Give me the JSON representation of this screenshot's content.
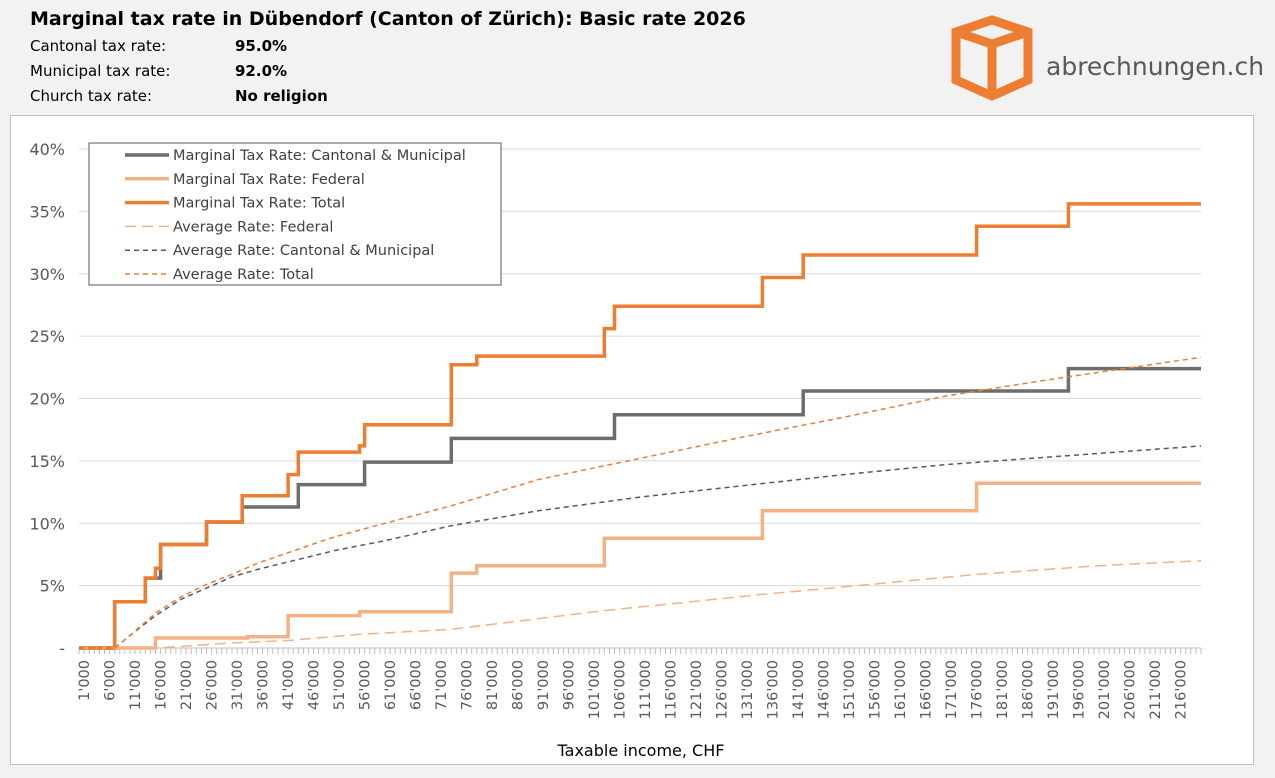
{
  "header": {
    "title": "Marginal tax rate in Dübendorf (Canton of Zürich): Basic rate 2026",
    "rows": [
      {
        "label": "Cantonal tax rate:",
        "value": "95.0%"
      },
      {
        "label": "Municipal tax rate:",
        "value": "92.0%"
      },
      {
        "label": "Church tax rate:",
        "value": "No religion"
      }
    ]
  },
  "brand": {
    "name": "abrechnungen.ch",
    "icon": "box-icon",
    "color": "#ed7d31"
  },
  "chart_data": {
    "type": "line",
    "xlabel": "Taxable income, CHF",
    "x_ticks": [
      "1'000",
      "6'000",
      "11'000",
      "16'000",
      "21'000",
      "26'000",
      "31'000",
      "36'000",
      "41'000",
      "46'000",
      "51'000",
      "56'000",
      "61'000",
      "66'000",
      "71'000",
      "76'000",
      "81'000",
      "86'000",
      "91'000",
      "96'000",
      "101'000",
      "106'000",
      "111'000",
      "116'000",
      "121'000",
      "126'000",
      "131'000",
      "136'000",
      "141'000",
      "146'000",
      "151'000",
      "156'000",
      "161'000",
      "166'000",
      "171'000",
      "176'000",
      "181'000",
      "186'000",
      "191'000",
      "196'000",
      "201'000",
      "206'000",
      "211'000",
      "216'000"
    ],
    "y_ticks": [
      "-",
      "5%",
      "10%",
      "15%",
      "20%",
      "25%",
      "30%",
      "35%",
      "40%"
    ],
    "xlim": [
      0,
      220000
    ],
    "ylim": [
      0,
      40
    ],
    "grid": true,
    "legend_position": "top-left",
    "series": [
      {
        "name": "Marginal Tax Rate: Cantonal & Municipal",
        "color": "#6d6d6d",
        "style": "solid",
        "width": 3.5,
        "points": [
          [
            0,
            0
          ],
          [
            7000,
            0
          ],
          [
            7000,
            3.7
          ],
          [
            13000,
            3.7
          ],
          [
            13000,
            5.6
          ],
          [
            16000,
            5.6
          ],
          [
            16000,
            8.3
          ],
          [
            25000,
            8.3
          ],
          [
            25000,
            10.1
          ],
          [
            32000,
            10.1
          ],
          [
            32000,
            11.3
          ],
          [
            43000,
            11.3
          ],
          [
            43000,
            13.1
          ],
          [
            56000,
            13.1
          ],
          [
            56000,
            14.9
          ],
          [
            73000,
            14.9
          ],
          [
            73000,
            16.8
          ],
          [
            105000,
            16.8
          ],
          [
            105000,
            18.7
          ],
          [
            142000,
            18.7
          ],
          [
            142000,
            20.6
          ],
          [
            194000,
            20.6
          ],
          [
            194000,
            22.4
          ],
          [
            220000,
            22.4
          ]
        ]
      },
      {
        "name": "Marginal Tax Rate: Federal",
        "color": "#f4b183",
        "style": "solid",
        "width": 3.5,
        "points": [
          [
            0,
            0
          ],
          [
            15000,
            0
          ],
          [
            15000,
            0.8
          ],
          [
            33000,
            0.8
          ],
          [
            33000,
            0.9
          ],
          [
            41000,
            0.9
          ],
          [
            41000,
            2.6
          ],
          [
            55000,
            2.6
          ],
          [
            55000,
            2.9
          ],
          [
            73000,
            2.9
          ],
          [
            73000,
            6.0
          ],
          [
            78000,
            6.0
          ],
          [
            78000,
            6.6
          ],
          [
            103000,
            6.6
          ],
          [
            103000,
            8.8
          ],
          [
            134000,
            8.8
          ],
          [
            134000,
            11.0
          ],
          [
            176000,
            11.0
          ],
          [
            176000,
            13.2
          ],
          [
            220000,
            13.2
          ]
        ]
      },
      {
        "name": "Marginal Tax Rate: Total",
        "color": "#ed7d31",
        "style": "solid",
        "width": 3.5,
        "points": [
          [
            0,
            0
          ],
          [
            7000,
            0
          ],
          [
            7000,
            3.7
          ],
          [
            13000,
            3.7
          ],
          [
            13000,
            5.6
          ],
          [
            15000,
            5.6
          ],
          [
            15000,
            6.4
          ],
          [
            16000,
            6.4
          ],
          [
            16000,
            8.3
          ],
          [
            25000,
            8.3
          ],
          [
            25000,
            10.1
          ],
          [
            32000,
            10.1
          ],
          [
            32000,
            12.2
          ],
          [
            41000,
            12.2
          ],
          [
            41000,
            13.9
          ],
          [
            43000,
            13.9
          ],
          [
            43000,
            15.7
          ],
          [
            55000,
            15.7
          ],
          [
            55000,
            16.2
          ],
          [
            56000,
            16.2
          ],
          [
            56000,
            17.9
          ],
          [
            73000,
            17.9
          ],
          [
            73000,
            22.7
          ],
          [
            78000,
            22.7
          ],
          [
            78000,
            23.4
          ],
          [
            103000,
            23.4
          ],
          [
            103000,
            25.6
          ],
          [
            105000,
            25.6
          ],
          [
            105000,
            27.4
          ],
          [
            134000,
            27.4
          ],
          [
            134000,
            29.7
          ],
          [
            142000,
            29.7
          ],
          [
            142000,
            31.5
          ],
          [
            176000,
            31.5
          ],
          [
            176000,
            33.8
          ],
          [
            194000,
            33.8
          ],
          [
            194000,
            35.6
          ],
          [
            220000,
            35.6
          ]
        ]
      },
      {
        "name": "Average Rate: Federal",
        "color": "#f4b183",
        "style": "dashed-long",
        "width": 1.5,
        "points": [
          [
            0,
            0
          ],
          [
            15000,
            0
          ],
          [
            30000,
            0.4
          ],
          [
            41000,
            0.6
          ],
          [
            55000,
            1.1
          ],
          [
            73000,
            1.5
          ],
          [
            85000,
            2.1
          ],
          [
            103000,
            3.0
          ],
          [
            120000,
            3.7
          ],
          [
            134000,
            4.3
          ],
          [
            150000,
            4.9
          ],
          [
            176000,
            5.9
          ],
          [
            200000,
            6.6
          ],
          [
            220000,
            7.0
          ]
        ]
      },
      {
        "name": "Average Rate: Cantonal & Municipal",
        "color": "#595959",
        "style": "dashed",
        "width": 1.5,
        "points": [
          [
            0,
            0
          ],
          [
            7000,
            0
          ],
          [
            10000,
            1.0
          ],
          [
            15000,
            2.6
          ],
          [
            20000,
            3.9
          ],
          [
            25000,
            4.8
          ],
          [
            30000,
            5.7
          ],
          [
            35000,
            6.3
          ],
          [
            40000,
            6.8
          ],
          [
            50000,
            7.8
          ],
          [
            60000,
            8.6
          ],
          [
            73000,
            9.8
          ],
          [
            90000,
            11.0
          ],
          [
            110000,
            12.1
          ],
          [
            130000,
            13.0
          ],
          [
            150000,
            13.9
          ],
          [
            170000,
            14.7
          ],
          [
            190000,
            15.3
          ],
          [
            200000,
            15.6
          ],
          [
            220000,
            16.2
          ]
        ]
      },
      {
        "name": "Average Rate: Total",
        "color": "#ed7d31",
        "style": "dashed",
        "width": 1.5,
        "points": [
          [
            0,
            0
          ],
          [
            7000,
            0
          ],
          [
            10000,
            1.0
          ],
          [
            15000,
            2.8
          ],
          [
            20000,
            4.1
          ],
          [
            25000,
            5.1
          ],
          [
            30000,
            5.9
          ],
          [
            35000,
            6.8
          ],
          [
            40000,
            7.5
          ],
          [
            50000,
            8.9
          ],
          [
            60000,
            10.0
          ],
          [
            73000,
            11.4
          ],
          [
            90000,
            13.5
          ],
          [
            110000,
            15.2
          ],
          [
            130000,
            16.9
          ],
          [
            150000,
            18.5
          ],
          [
            170000,
            20.2
          ],
          [
            190000,
            21.5
          ],
          [
            200000,
            22.1
          ],
          [
            220000,
            23.3
          ]
        ]
      }
    ]
  }
}
